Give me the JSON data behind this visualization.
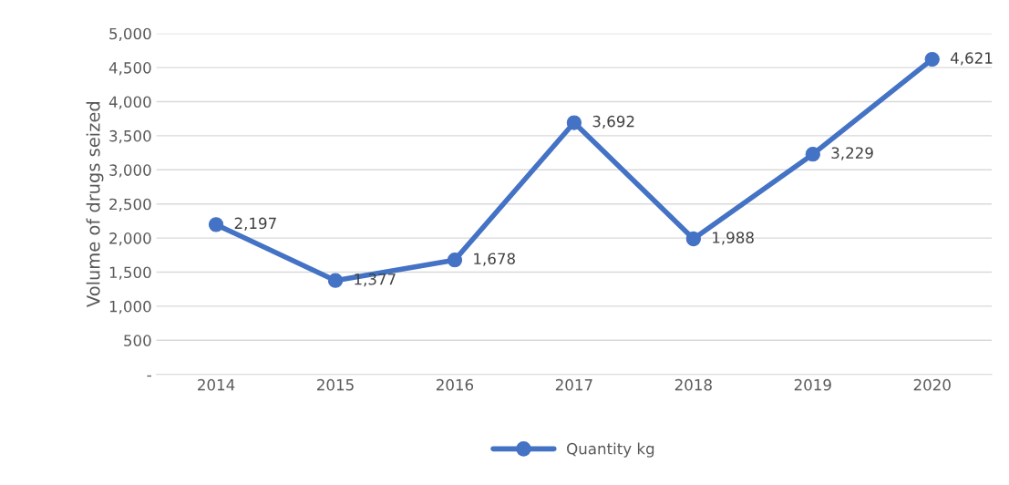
{
  "chart_data": {
    "type": "line",
    "ylabel": "Volume of drugs seized",
    "categories": [
      "2014",
      "2015",
      "2016",
      "2017",
      "2018",
      "2019",
      "2020"
    ],
    "series": [
      {
        "name": "Quantity kg",
        "color": "#4472c4",
        "values": [
          2197,
          1377,
          1678,
          3692,
          1988,
          3229,
          4621
        ],
        "value_labels": [
          "2,197",
          "1,377",
          "1,678",
          "3,692",
          "1,988",
          "3,229",
          "4,621"
        ]
      }
    ],
    "ylim": [
      0,
      5000
    ],
    "yticks": [
      {
        "value": 0,
        "label": "-"
      },
      500,
      {
        "value": 1000,
        "label": "1,000"
      },
      {
        "value": 1500,
        "label": "1,500"
      },
      {
        "value": 2000,
        "label": "2,000"
      },
      {
        "value": 2500,
        "label": "2,500"
      },
      {
        "value": 3000,
        "label": "3,000"
      },
      {
        "value": 3500,
        "label": "3,500"
      },
      {
        "value": 4000,
        "label": "4,000"
      },
      {
        "value": 4500,
        "label": "4,500"
      },
      {
        "value": 5000,
        "label": "5,000"
      }
    ],
    "grid": "y",
    "legend": "bottom",
    "marker": "circle",
    "line_style": "solid"
  }
}
